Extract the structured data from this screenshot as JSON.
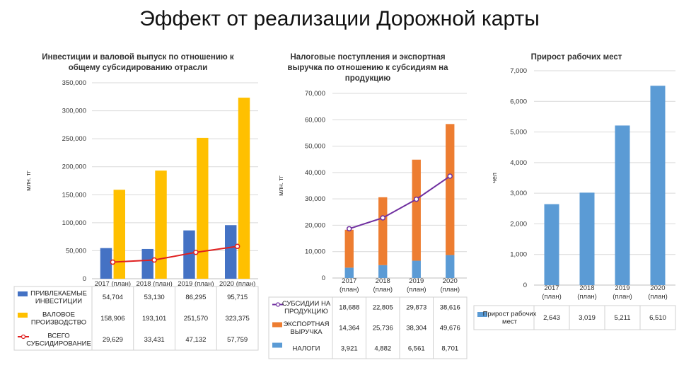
{
  "page": {
    "title": "Эффект от реализации Дорожной карты"
  },
  "colors": {
    "blue": "#4472c4",
    "yellow": "#ffc000",
    "red": "#e02020",
    "orange": "#ed7d31",
    "lightblue": "#5b9bd5",
    "purple": "#7030a0",
    "grid": "#d9d9d9"
  },
  "chart_data": [
    {
      "type": "bar",
      "title": "Инвестиции и валовой выпуск по отношению к общему субсидированию отрасли",
      "ylabel": "млн. тг",
      "ylim": [
        0,
        350000
      ],
      "yticks": [
        "0",
        "50,000",
        "100,000",
        "150,000",
        "200,000",
        "250,000",
        "300,000",
        "350,000"
      ],
      "categories": [
        "2017 (план)",
        "2018 (план)",
        "2019 (план)",
        "2020 (план)"
      ],
      "series": [
        {
          "name": "ПРИВЛЕКАЕМЫЕ ИНВЕСТИЦИИ",
          "kind": "bar",
          "color": "#4472c4",
          "values": [
            54704,
            53130,
            86295,
            95715
          ],
          "labels": [
            "54,704",
            "53,130",
            "86,295",
            "95,715"
          ]
        },
        {
          "name": "ВАЛОВОЕ ПРОИЗВОДСТВО",
          "kind": "bar",
          "color": "#ffc000",
          "values": [
            158906,
            193101,
            251570,
            323375
          ],
          "labels": [
            "158,906",
            "193,101",
            "251,570",
            "323,375"
          ]
        },
        {
          "name": "ВСЕГО СУБСИДИРОВАНИЕ",
          "kind": "line",
          "color": "#e02020",
          "values": [
            29629,
            33431,
            47132,
            57759
          ],
          "labels": [
            "29,629",
            "33,431",
            "47,132",
            "57,759"
          ]
        }
      ]
    },
    {
      "type": "bar",
      "title": "Налоговые поступления и экспортная выручка по отношению к субсидиям на продукцию",
      "ylabel": "млн. тг",
      "ylim": [
        0,
        70000
      ],
      "yticks": [
        "0",
        "10,000",
        "20,000",
        "30,000",
        "40,000",
        "50,000",
        "60,000",
        "70,000"
      ],
      "categories": [
        "2017 (план)",
        "2018 (план)",
        "2019 (план)",
        "2020 (план)"
      ],
      "series": [
        {
          "name": "СУБСИДИИ НА ПРОДУКЦИЮ",
          "kind": "line",
          "color": "#7030a0",
          "values": [
            18688,
            22805,
            29873,
            38616
          ],
          "labels": [
            "18,688",
            "22,805",
            "29,873",
            "38,616"
          ]
        },
        {
          "name": "ЭКСПОРТНАЯ ВЫРУЧКА",
          "kind": "stack",
          "color": "#ed7d31",
          "values": [
            14364,
            25736,
            38304,
            49676
          ],
          "labels": [
            "14,364",
            "25,736",
            "38,304",
            "49,676"
          ]
        },
        {
          "name": "НАЛОГИ",
          "kind": "stack",
          "color": "#5b9bd5",
          "values": [
            3921,
            4882,
            6561,
            8701
          ],
          "labels": [
            "3,921",
            "4,882",
            "6,561",
            "8,701"
          ]
        }
      ]
    },
    {
      "type": "bar",
      "title": "Прирост рабочих мест",
      "ylabel": "чел",
      "ylim": [
        0,
        7000
      ],
      "yticks": [
        "0",
        "1,000",
        "2,000",
        "3,000",
        "4,000",
        "5,000",
        "6,000",
        "7,000"
      ],
      "categories": [
        "2017 (план)",
        "2018 (план)",
        "2019 (план)",
        "2020 (план)"
      ],
      "series": [
        {
          "name": "Прирост рабочих мест",
          "kind": "bar",
          "color": "#5b9bd5",
          "values": [
            2643,
            3019,
            5211,
            6510
          ],
          "labels": [
            "2,643",
            "3,019",
            "5,211",
            "6,510"
          ]
        }
      ]
    }
  ]
}
